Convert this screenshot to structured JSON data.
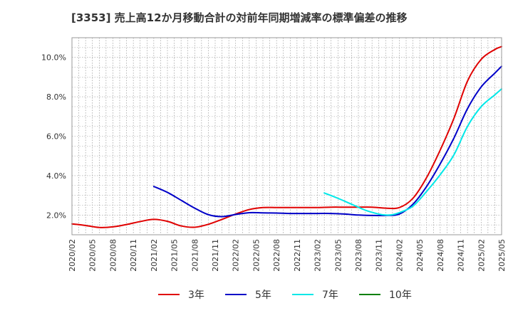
{
  "chart_data": {
    "type": "line",
    "title": "[3353]  売上高12か月移動合計の対前年同期増減率の標準偏差の推移",
    "xlabel": "",
    "ylabel": "",
    "x_tick_labels": [
      "2020/02",
      "2020/05",
      "2020/08",
      "2020/11",
      "2021/02",
      "2021/05",
      "2021/08",
      "2021/11",
      "2022/02",
      "2022/05",
      "2022/08",
      "2022/11",
      "2023/02",
      "2023/05",
      "2023/08",
      "2023/11",
      "2024/02",
      "2024/05",
      "2024/08",
      "2024/11",
      "2025/02",
      "2025/05"
    ],
    "y_tick_labels": [
      "2.0%",
      "4.0%",
      "6.0%",
      "8.0%",
      "10.0%"
    ],
    "y_ticks": [
      2.0,
      4.0,
      6.0,
      8.0,
      10.0
    ],
    "ylim": [
      1.0,
      11.0
    ],
    "xlim_months": [
      0,
      63
    ],
    "x_start": "2020/02",
    "grid": true,
    "legend_position": "bottom",
    "series": [
      {
        "name": "3年",
        "color": "#e00000",
        "month_index": [
          0,
          2,
          4,
          6,
          8,
          10,
          12,
          14,
          16,
          18,
          20,
          22,
          24,
          26,
          28,
          30,
          32,
          34,
          36,
          38,
          40,
          42,
          44,
          46,
          48,
          50,
          52,
          54,
          56,
          58,
          60,
          62,
          63
        ],
        "values": [
          1.55,
          1.47,
          1.37,
          1.4,
          1.52,
          1.67,
          1.78,
          1.68,
          1.45,
          1.38,
          1.53,
          1.78,
          2.05,
          2.28,
          2.38,
          2.38,
          2.38,
          2.38,
          2.38,
          2.4,
          2.4,
          2.4,
          2.4,
          2.35,
          2.38,
          2.85,
          3.9,
          5.3,
          6.9,
          8.8,
          9.9,
          10.4,
          10.55
        ]
      },
      {
        "name": "5年",
        "color": "#0000c8",
        "month_index": [
          12,
          14,
          16,
          18,
          20,
          22,
          24,
          26,
          28,
          30,
          32,
          34,
          36,
          38,
          40,
          42,
          44,
          46,
          48,
          50,
          52,
          54,
          56,
          58,
          60,
          62,
          63
        ],
        "values": [
          3.45,
          3.15,
          2.75,
          2.35,
          2.02,
          1.92,
          2.03,
          2.12,
          2.11,
          2.1,
          2.08,
          2.08,
          2.08,
          2.08,
          2.05,
          2.0,
          1.98,
          1.98,
          2.05,
          2.55,
          3.45,
          4.6,
          5.9,
          7.4,
          8.5,
          9.2,
          9.55
        ]
      },
      {
        "name": "7年",
        "color": "#00e8e8",
        "month_index": [
          37,
          39,
          41,
          43,
          45,
          46,
          47,
          48,
          50,
          52,
          54,
          56,
          58,
          60,
          62,
          63
        ],
        "values": [
          3.12,
          2.85,
          2.55,
          2.25,
          2.05,
          2.0,
          2.02,
          2.12,
          2.45,
          3.2,
          4.05,
          5.05,
          6.5,
          7.5,
          8.1,
          8.4
        ]
      },
      {
        "name": "10年",
        "color": "#008000",
        "month_index": [],
        "values": []
      }
    ]
  }
}
